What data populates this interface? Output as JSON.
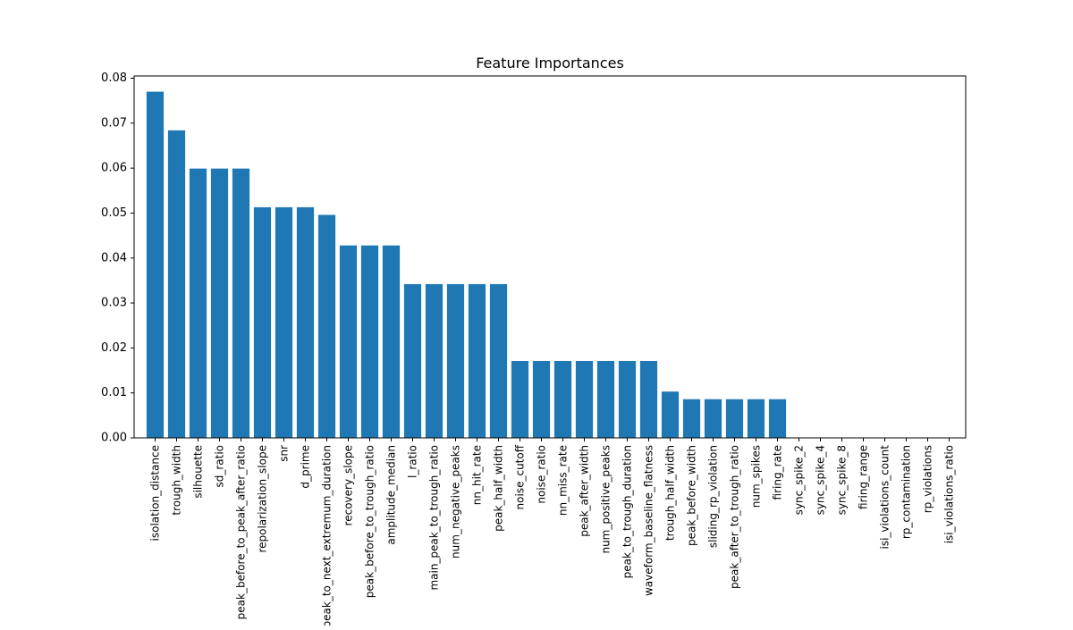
{
  "chart_data": {
    "type": "bar",
    "title": "Feature Importances",
    "xlabel": "",
    "ylabel": "",
    "ylim": [
      0,
      0.0805
    ],
    "yticks": [
      "0.00",
      "0.01",
      "0.02",
      "0.03",
      "0.04",
      "0.05",
      "0.06",
      "0.07",
      "0.08"
    ],
    "ytick_values": [
      0,
      0.01,
      0.02,
      0.03,
      0.04,
      0.05,
      0.06,
      0.07,
      0.08
    ],
    "grid": false,
    "legend": "none",
    "bar_color": "#1f77b4",
    "categories": [
      "isolation_distance",
      "trough_width",
      "silhouette",
      "sd_ratio",
      "peak_before_to_peak_after_ratio",
      "repolarization_slope",
      "snr",
      "d_prime",
      "peak_to_next_extremum_duration",
      "recovery_slope",
      "peak_before_to_trough_ratio",
      "amplitude_median",
      "l_ratio",
      "main_peak_to_trough_ratio",
      "num_negative_peaks",
      "nn_hit_rate",
      "peak_half_width",
      "noise_cutoff",
      "noise_ratio",
      "nn_miss_rate",
      "peak_after_width",
      "num_positive_peaks",
      "peak_to_trough_duration",
      "waveform_baseline_flatness",
      "trough_half_width",
      "peak_before_width",
      "sliding_rp_violation",
      "peak_after_to_trough_ratio",
      "num_spikes",
      "firing_rate",
      "sync_spike_2",
      "sync_spike_4",
      "sync_spike_8",
      "firing_range",
      "isi_violations_count",
      "rp_contamination",
      "rp_violations",
      "isi_violations_ratio"
    ],
    "values": [
      0.077,
      0.0684,
      0.0599,
      0.0599,
      0.0599,
      0.0513,
      0.0513,
      0.0513,
      0.0496,
      0.0428,
      0.0428,
      0.0428,
      0.0342,
      0.0342,
      0.0342,
      0.0342,
      0.0342,
      0.0171,
      0.0171,
      0.0171,
      0.0171,
      0.0171,
      0.0171,
      0.0171,
      0.0103,
      0.0086,
      0.0086,
      0.0086,
      0.0086,
      0.0086,
      0,
      0,
      0,
      0,
      0,
      0,
      0,
      0
    ]
  }
}
